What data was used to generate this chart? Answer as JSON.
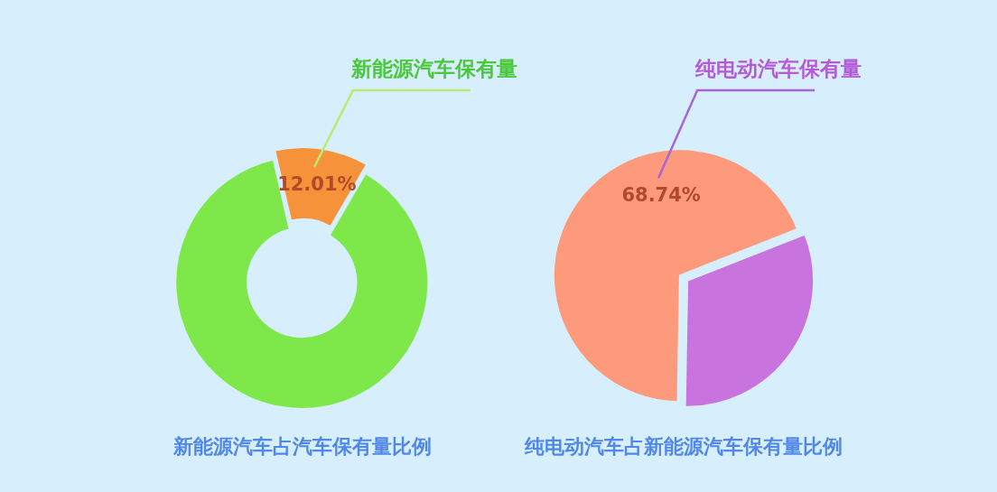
{
  "chart_data": [
    {
      "type": "donut",
      "title": "新能源汽车占汽车保有量比例",
      "categories": [
        "新能源汽车保有量",
        null
      ],
      "values": [
        12.01,
        87.99
      ],
      "colors": [
        "#f5923a",
        "#7ee84a"
      ],
      "value_labels": [
        "12.01%",
        null
      ],
      "legend": false
    },
    {
      "type": "pie",
      "title": "纯电动汽车占新能源汽车保有量比例",
      "categories": [
        "纯电动汽车保有量",
        null
      ],
      "values": [
        68.74,
        31.26
      ],
      "colors": [
        "#fd9a7c",
        "#c873de"
      ],
      "value_labels": [
        "68.74%",
        null
      ],
      "legend": false
    }
  ]
}
